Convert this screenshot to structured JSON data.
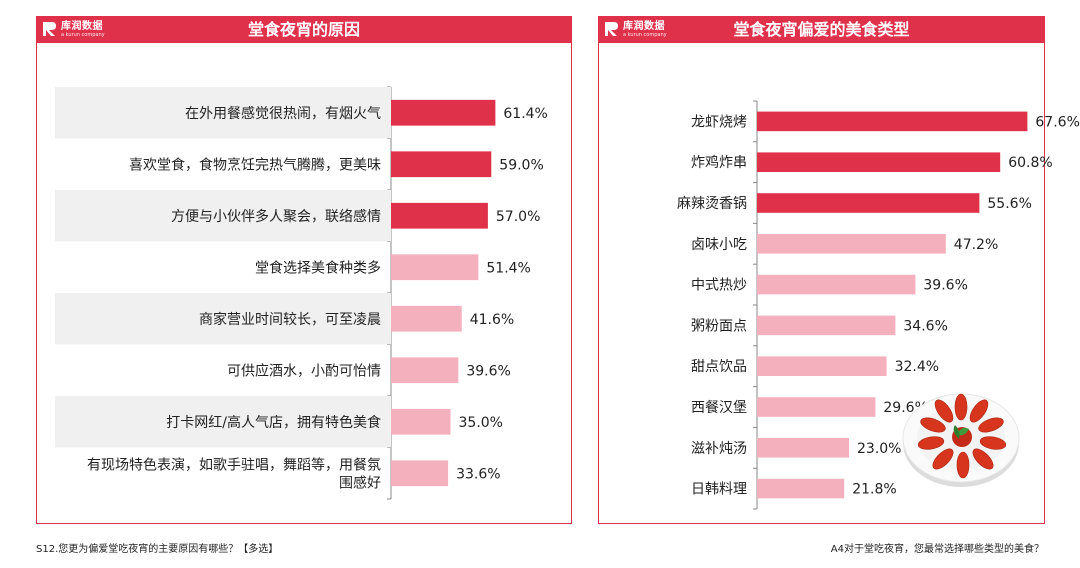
{
  "colors": {
    "accent": "#e0314b",
    "dark_bar": "#e0314b",
    "light_bar": "#f5b0be",
    "band": "#f0f0f0"
  },
  "logo": {
    "name": "库润数据",
    "sub": "a kurun company"
  },
  "footnotes": {
    "left": "S12.您更为偏爱堂吃夜宵的主要原因有哪些？【多选】",
    "right": "A4对于堂吃夜宵，您最常选择哪些类型的美食？"
  },
  "chart_data": [
    {
      "type": "bar",
      "orientation": "horizontal",
      "title": "堂食夜宵的原因",
      "categories": [
        "在外用餐感觉很热闹，有烟火气",
        "喜欢堂食，食物烹饪完热气腾腾，更美味",
        "方便与小伙伴多人聚会，联络感情",
        "堂食选择美食种类多",
        "商家营业时间较长，可至凌晨",
        "可供应酒水，小酌可怡情",
        "打卡网红/高人气店，拥有特色美食",
        "有现场特色表演，如歌手驻唱，舞蹈等，用餐氛围感好"
      ],
      "values": [
        61.4,
        59.0,
        57.0,
        51.4,
        41.6,
        39.6,
        35.0,
        33.6
      ],
      "value_labels": [
        "61.4%",
        "59.0%",
        "57.0%",
        "51.4%",
        "41.6%",
        "39.6%",
        "35.0%",
        "33.6%"
      ],
      "highlight_top": 3,
      "alternating_bands": true
    },
    {
      "type": "bar",
      "orientation": "horizontal",
      "title": "堂食夜宵偏爱的美食类型",
      "categories": [
        "龙虾烧烤",
        "炸鸡炸串",
        "麻辣烫香锅",
        "卤味小吃",
        "中式热炒",
        "粥粉面点",
        "甜点饮品",
        "西餐汉堡",
        "滋补炖汤",
        "日韩料理"
      ],
      "values": [
        67.6,
        60.8,
        55.6,
        47.2,
        39.6,
        34.6,
        32.4,
        29.6,
        23.0,
        21.8
      ],
      "value_labels": [
        "67.6%",
        "60.8%",
        "55.6%",
        "47.2%",
        "39.6%",
        "34.6%",
        "32.4%",
        "29.6%",
        "23.0%",
        "21.8%"
      ],
      "highlight_top": 3,
      "alternating_bands": false
    }
  ]
}
